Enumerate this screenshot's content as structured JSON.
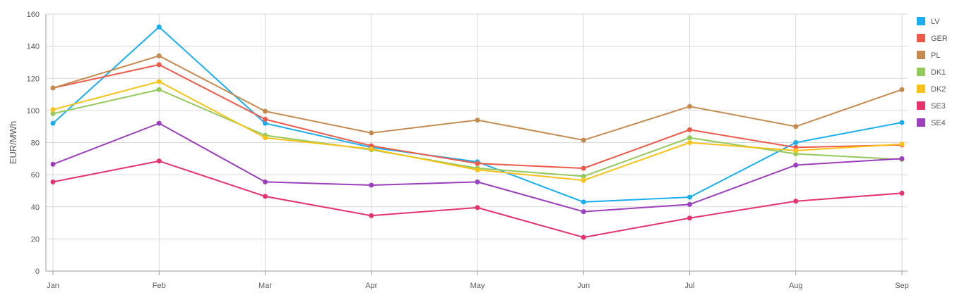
{
  "chart_data": {
    "type": "line",
    "title": "",
    "xlabel": "",
    "ylabel": "EUR/MWh",
    "ylim": [
      0,
      160
    ],
    "yticks": [
      0,
      20,
      40,
      60,
      80,
      100,
      120,
      140,
      160
    ],
    "grid": true,
    "legend_position": "right",
    "categories": [
      "Jan",
      "Feb",
      "Mar",
      "Apr",
      "May",
      "Jun",
      "Jul",
      "Aug",
      "Sep"
    ],
    "series": [
      {
        "name": "LV",
        "color": "#1aaef0",
        "values": [
          92,
          152,
          92,
          77,
          68,
          43,
          46,
          80,
          92.5
        ]
      },
      {
        "name": "GER",
        "color": "#ee5a4a",
        "values": [
          114,
          128.5,
          94.5,
          78,
          67,
          64,
          88,
          77,
          78.5
        ]
      },
      {
        "name": "PL",
        "color": "#c48a4e",
        "values": [
          114,
          134,
          99.5,
          86,
          94,
          81.5,
          102.5,
          90,
          113
        ]
      },
      {
        "name": "DK1",
        "color": "#94c95c",
        "values": [
          98,
          113,
          84.5,
          75.5,
          64,
          59,
          83,
          73,
          69.5
        ]
      },
      {
        "name": "DK2",
        "color": "#f7c21a",
        "values": [
          100.5,
          118,
          83,
          76,
          63,
          56.5,
          80,
          75,
          79
        ]
      },
      {
        "name": "SE3",
        "color": "#e5336e",
        "values": [
          55.5,
          68.5,
          46.5,
          34.5,
          39.5,
          21,
          33,
          43.5,
          48.5
        ]
      },
      {
        "name": "SE4",
        "color": "#9b3fbd",
        "values": [
          66.5,
          92,
          55.5,
          53.5,
          55.5,
          37,
          41.5,
          66,
          70
        ]
      }
    ]
  }
}
